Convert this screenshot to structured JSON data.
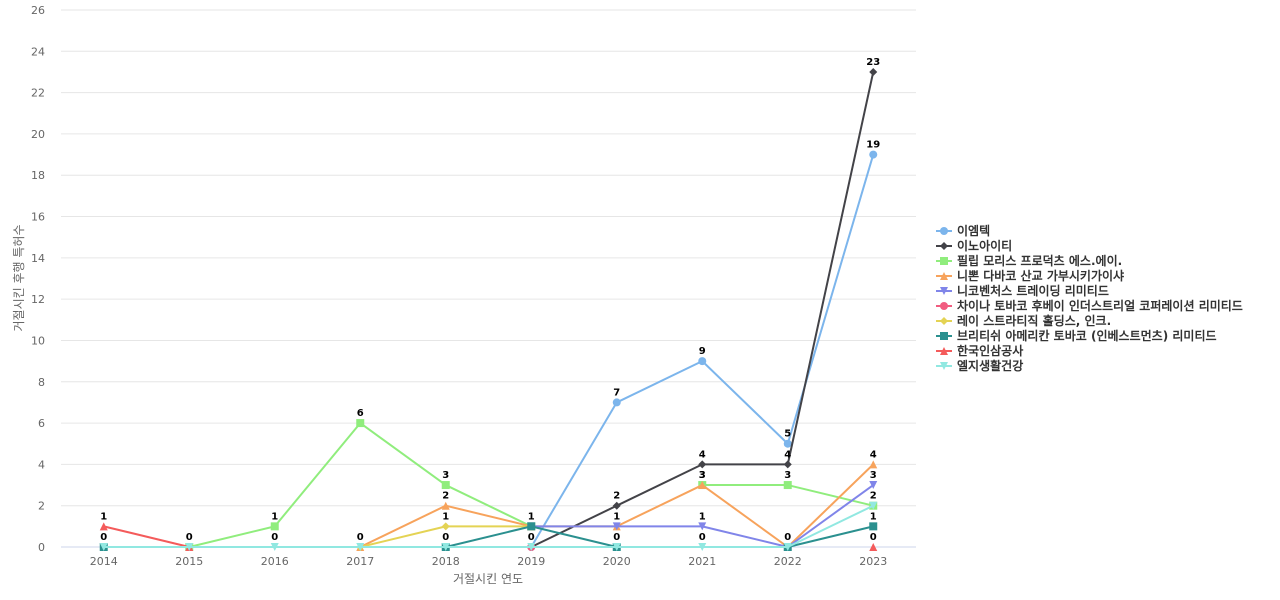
{
  "chart_data": {
    "type": "line",
    "title": "",
    "xlabel": "거절시킨 연도",
    "ylabel": "거절시킨 후행 특허수",
    "categories": [
      "2014",
      "2015",
      "2016",
      "2017",
      "2018",
      "2019",
      "2020",
      "2021",
      "2022",
      "2023"
    ],
    "ylim": [
      0,
      26
    ],
    "yticks": [
      0,
      2,
      4,
      6,
      8,
      10,
      12,
      14,
      16,
      18,
      20,
      22,
      24,
      26
    ],
    "grid": true,
    "legend_position": "right",
    "series": [
      {
        "name": "이엠텍",
        "color": "#7cb5ec",
        "marker": "circle",
        "values": [
          null,
          null,
          null,
          null,
          null,
          0,
          7,
          9,
          5,
          19
        ],
        "labels": [
          null,
          null,
          null,
          null,
          null,
          null,
          "7",
          "9",
          "5",
          "19"
        ]
      },
      {
        "name": "이노아이티",
        "color": "#434348",
        "marker": "diamond",
        "values": [
          null,
          null,
          null,
          null,
          null,
          0,
          2,
          4,
          4,
          23
        ],
        "labels": [
          null,
          null,
          null,
          null,
          null,
          null,
          "2",
          "4",
          "4",
          "23"
        ]
      },
      {
        "name": "필립 모리스 프로덕츠 에스.에이.",
        "color": "#90ed7d",
        "marker": "square",
        "values": [
          null,
          0,
          1,
          6,
          3,
          1,
          null,
          3,
          3,
          2
        ],
        "labels": [
          null,
          null,
          "1",
          "6",
          "3",
          "1",
          null,
          "3",
          "3",
          null
        ]
      },
      {
        "name": "니뽄 다바코 산교 가부시키가이샤",
        "color": "#f7a35c",
        "marker": "triangle",
        "values": [
          null,
          null,
          null,
          0,
          2,
          1,
          1,
          3,
          0,
          4
        ],
        "labels": [
          null,
          null,
          null,
          null,
          "2",
          null,
          "1",
          "3",
          null,
          "4"
        ]
      },
      {
        "name": "니코벤처스 트레이딩 리미티드",
        "color": "#8085e9",
        "marker": "triangle-down",
        "values": [
          null,
          null,
          null,
          null,
          null,
          1,
          1,
          1,
          0,
          3
        ],
        "labels": [
          null,
          null,
          null,
          null,
          null,
          null,
          null,
          "1",
          null,
          "3"
        ]
      },
      {
        "name": "차이나 토바코 후베이 인더스트리얼 코퍼레이션 리미티드",
        "color": "#f15c80",
        "marker": "circle",
        "values": [
          null,
          null,
          null,
          null,
          null,
          0,
          null,
          null,
          null,
          null
        ],
        "labels": [
          null,
          null,
          null,
          null,
          null,
          null,
          null,
          null,
          null,
          null
        ]
      },
      {
        "name": "레이 스트라티직 홀딩스, 인크.",
        "color": "#e4d354",
        "marker": "diamond",
        "values": [
          null,
          null,
          null,
          0,
          1,
          1,
          null,
          null,
          null,
          null
        ],
        "labels": [
          null,
          null,
          null,
          null,
          "1",
          null,
          null,
          null,
          null,
          null
        ]
      },
      {
        "name": "브리티쉬 아메리칸 토바코 (인베스트먼츠) 리미티드",
        "color": "#2b908f",
        "marker": "square",
        "values": [
          0,
          null,
          null,
          null,
          0,
          1,
          0,
          null,
          0,
          1
        ],
        "labels": [
          null,
          null,
          null,
          null,
          null,
          null,
          null,
          null,
          null,
          "1"
        ]
      },
      {
        "name": "한국인삼공사",
        "color": "#f45b5b",
        "marker": "triangle",
        "values": [
          1,
          0,
          null,
          null,
          null,
          null,
          null,
          null,
          null,
          0
        ],
        "labels": [
          "1",
          "0",
          null,
          null,
          null,
          null,
          null,
          null,
          null,
          null
        ]
      },
      {
        "name": "엘지생활건강",
        "color": "#91e8e1",
        "marker": "triangle-down",
        "values": [
          0,
          0,
          0,
          0,
          0,
          0,
          0,
          0,
          0,
          2
        ],
        "labels": [
          "0",
          null,
          "0",
          "0",
          "0",
          "0",
          "0",
          "0",
          "0",
          "2"
        ]
      }
    ],
    "extra_labels": [
      {
        "category": "2023",
        "value": 0,
        "text": "0"
      }
    ]
  }
}
